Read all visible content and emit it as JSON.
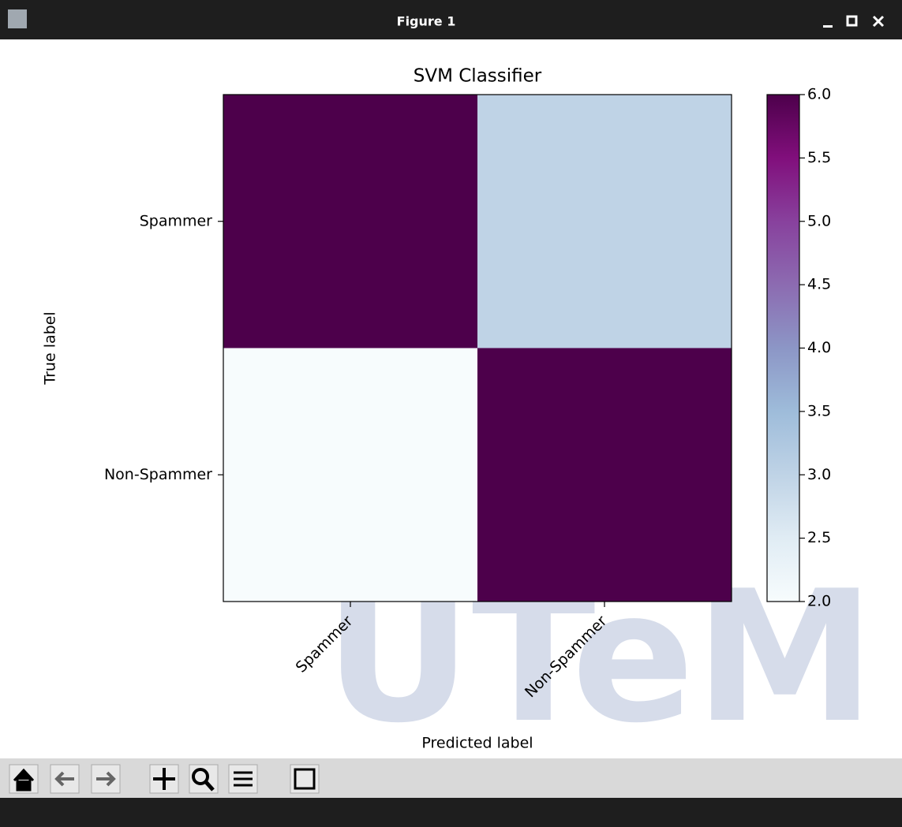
{
  "window": {
    "title": "Figure 1"
  },
  "watermark": "UTeM",
  "chart_data": {
    "type": "heatmap",
    "title": "SVM Classifier",
    "x_label": "Predicted label",
    "y_label": "True label",
    "x_categories": [
      "Spammer",
      "Non-Spammer"
    ],
    "y_categories": [
      "Spammer",
      "Non-Spammer"
    ],
    "values": [
      [
        6,
        3
      ],
      [
        2,
        6
      ]
    ],
    "colormap": [
      "#f7fcfd",
      "#e0ecf4",
      "#bfd3e6",
      "#9ebcda",
      "#8c96c6",
      "#8c6bb1",
      "#88419d",
      "#810f7c",
      "#4d004b"
    ],
    "clim": [
      2,
      6
    ],
    "cticks": [
      {
        "value": 2,
        "label": "2.0"
      },
      {
        "value": 2.5,
        "label": "2.5"
      },
      {
        "value": 3,
        "label": "3.0"
      },
      {
        "value": 3.5,
        "label": "3.5"
      },
      {
        "value": 4,
        "label": "4.0"
      },
      {
        "value": 4.5,
        "label": "4.5"
      },
      {
        "value": 5,
        "label": "5.0"
      },
      {
        "value": 5.5,
        "label": "5.5"
      },
      {
        "value": 6,
        "label": "6.0"
      }
    ]
  }
}
